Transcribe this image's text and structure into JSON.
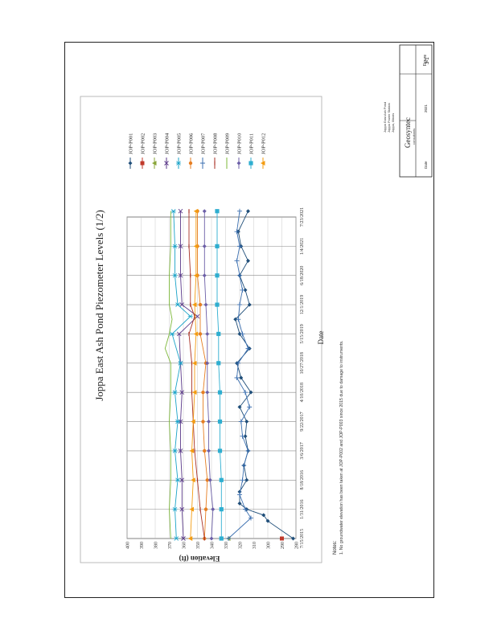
{
  "chart_data": {
    "type": "line",
    "title": "Joppa East Ash Pond Piezometer Levels (1/2)",
    "xlabel": "Date",
    "ylabel": "Elevation (ft)",
    "x_ticks": [
      "7/15/2015",
      "1/31/2016",
      "8/18/2016",
      "3/6/2017",
      "9/22/2017",
      "4/10/2018",
      "10/27/2018",
      "5/15/2019",
      "12/1/2019",
      "6/18/2020",
      "1/4/2021",
      "7/23/2021"
    ],
    "y_ticks": [
      280,
      290,
      300,
      310,
      320,
      330,
      340,
      350,
      360,
      370,
      380,
      390,
      400
    ],
    "ylim": [
      280,
      400
    ],
    "grid": true,
    "legend_position": "right",
    "rotation": "page rotated 90 degrees counter-clockwise",
    "series": [
      {
        "name": "JOP-P001",
        "color": "#1f4e79",
        "marker": "diamond",
        "values": [
          [
            0,
            282
          ],
          [
            0.6,
            300
          ],
          [
            0.8,
            303
          ],
          [
            1.0,
            315
          ],
          [
            1.2,
            320
          ],
          [
            1.6,
            320
          ],
          [
            2.0,
            315
          ],
          [
            2.5,
            317
          ],
          [
            3.0,
            314
          ],
          [
            3.5,
            316
          ],
          [
            4.0,
            315
          ],
          [
            4.5,
            320
          ],
          [
            5.0,
            312
          ],
          [
            5.5,
            319
          ],
          [
            6.0,
            322
          ],
          [
            6.5,
            313
          ],
          [
            7.0,
            320
          ],
          [
            7.5,
            323
          ],
          [
            8.0,
            313
          ],
          [
            8.5,
            316
          ],
          [
            9.0,
            320
          ],
          [
            9.5,
            314
          ],
          [
            10.0,
            319
          ],
          [
            10.5,
            321
          ],
          [
            11.2,
            314
          ]
        ]
      },
      {
        "name": "JOP-P002",
        "color": "#c0392b",
        "marker": "square",
        "values": [
          [
            0,
            290
          ]
        ]
      },
      {
        "name": "JOP-P003",
        "color": "#8aa63a",
        "marker": "triangle",
        "values": [
          [
            0,
            328
          ]
        ]
      },
      {
        "name": "JOP-P004",
        "color": "#5b3a8a",
        "marker": "x",
        "values": [
          [
            0,
            360
          ],
          [
            1,
            361
          ],
          [
            2,
            361
          ],
          [
            3,
            362
          ],
          [
            4,
            362
          ],
          [
            5,
            361
          ],
          [
            6,
            362
          ],
          [
            7,
            363
          ],
          [
            7.6,
            350
          ],
          [
            8,
            361
          ],
          [
            9,
            362
          ],
          [
            10,
            362
          ],
          [
            11.2,
            362
          ]
        ]
      },
      {
        "name": "JOP-P005",
        "color": "#1aa3c8",
        "marker": "asterisk",
        "values": [
          [
            0,
            365
          ],
          [
            1,
            366
          ],
          [
            2,
            364
          ],
          [
            3,
            366
          ],
          [
            4,
            364
          ],
          [
            5,
            366
          ],
          [
            6,
            362
          ],
          [
            7,
            368
          ],
          [
            7.6,
            355
          ],
          [
            8,
            364
          ],
          [
            9,
            366
          ],
          [
            10,
            366
          ],
          [
            11.2,
            367
          ]
        ]
      },
      {
        "name": "JOP-P006",
        "color": "#e67e22",
        "marker": "circle",
        "values": [
          [
            0,
            345
          ],
          [
            1,
            344
          ],
          [
            2,
            343
          ],
          [
            3,
            345
          ],
          [
            4,
            346
          ],
          [
            5,
            346
          ],
          [
            6,
            344
          ],
          [
            7,
            348
          ],
          [
            8,
            348
          ],
          [
            9,
            350
          ],
          [
            10,
            350
          ],
          [
            11.2,
            350
          ]
        ]
      },
      {
        "name": "JOP-P007",
        "color": "#3b6fb0",
        "marker": "plus",
        "values": [
          [
            0,
            328
          ],
          [
            0.7,
            312
          ],
          [
            1,
            316
          ],
          [
            1.5,
            320
          ],
          [
            2,
            318
          ],
          [
            2.5,
            317
          ],
          [
            3,
            314
          ],
          [
            3.5,
            318
          ],
          [
            4,
            319
          ],
          [
            4.5,
            313
          ],
          [
            5,
            316
          ],
          [
            5.5,
            322
          ],
          [
            6,
            321
          ],
          [
            6.5,
            314
          ],
          [
            7,
            318
          ],
          [
            7.5,
            321
          ],
          [
            8,
            320
          ],
          [
            8.5,
            318
          ],
          [
            9,
            320
          ],
          [
            9.5,
            322
          ],
          [
            10,
            320
          ],
          [
            10.5,
            322
          ],
          [
            11.2,
            320
          ]
        ]
      },
      {
        "name": "JOP-P008",
        "color": "#a93226",
        "marker": "dash",
        "values": [
          [
            0,
            345
          ],
          [
            1,
            348
          ],
          [
            2,
            350
          ],
          [
            3,
            352
          ],
          [
            4,
            353
          ],
          [
            5,
            354
          ],
          [
            6,
            354
          ],
          [
            7,
            356
          ],
          [
            7.6,
            352
          ],
          [
            8,
            355
          ],
          [
            9,
            355
          ],
          [
            10,
            356
          ],
          [
            11.2,
            356
          ]
        ]
      },
      {
        "name": "JOP-P009",
        "color": "#7db83a",
        "marker": "line",
        "values": [
          [
            0,
            369
          ],
          [
            1,
            370
          ],
          [
            2,
            369
          ],
          [
            3,
            369
          ],
          [
            4,
            370
          ],
          [
            5,
            369
          ],
          [
            6,
            369
          ],
          [
            6.5,
            373
          ],
          [
            7,
            370
          ],
          [
            7.5,
            368
          ],
          [
            8,
            370
          ],
          [
            9,
            370
          ],
          [
            10,
            369
          ],
          [
            11.2,
            369
          ]
        ]
      },
      {
        "name": "JOP-P010",
        "color": "#6c5fa7",
        "marker": "diamond",
        "values": [
          [
            0,
            340
          ],
          [
            1,
            339
          ],
          [
            2,
            341
          ],
          [
            3,
            342
          ],
          [
            4,
            342
          ],
          [
            5,
            343
          ],
          [
            6,
            343
          ],
          [
            7,
            343
          ],
          [
            8,
            344
          ],
          [
            9,
            345
          ],
          [
            10,
            345
          ],
          [
            11.2,
            345
          ]
        ]
      },
      {
        "name": "JOP-P011",
        "color": "#2eaed0",
        "marker": "big-square",
        "values": [
          [
            0,
            333
          ],
          [
            1,
            333
          ],
          [
            2,
            333
          ],
          [
            3,
            334
          ],
          [
            4,
            334
          ],
          [
            5,
            334
          ],
          [
            6,
            335
          ],
          [
            7,
            335
          ],
          [
            8,
            336
          ],
          [
            9,
            336
          ],
          [
            10,
            336
          ],
          [
            11.2,
            336
          ]
        ]
      },
      {
        "name": "JOP-P012",
        "color": "#f39c12",
        "marker": "triangle",
        "values": [
          [
            0,
            355
          ],
          [
            1,
            354
          ],
          [
            2,
            353
          ],
          [
            3,
            354
          ],
          [
            4,
            353
          ],
          [
            5,
            352
          ],
          [
            6,
            352
          ],
          [
            7,
            351
          ],
          [
            8,
            352
          ],
          [
            9,
            351
          ],
          [
            10,
            351
          ],
          [
            11.2,
            351
          ]
        ]
      }
    ]
  },
  "notes": {
    "heading": "Notes:",
    "line1": "1. No groundwater elevation has been taken at JOP-P002 and JOP-P003 since 2015 due to damage to instruments."
  },
  "title_block": {
    "company": "Geosyntec",
    "company_sup": "consultants",
    "address": "Joppa East Ash Pond\nJoppa Power Station\nJoppa, Illinois",
    "figure_label": "Figure",
    "figure_number": "3-1",
    "date_label": "Date",
    "date_value": "2021"
  }
}
